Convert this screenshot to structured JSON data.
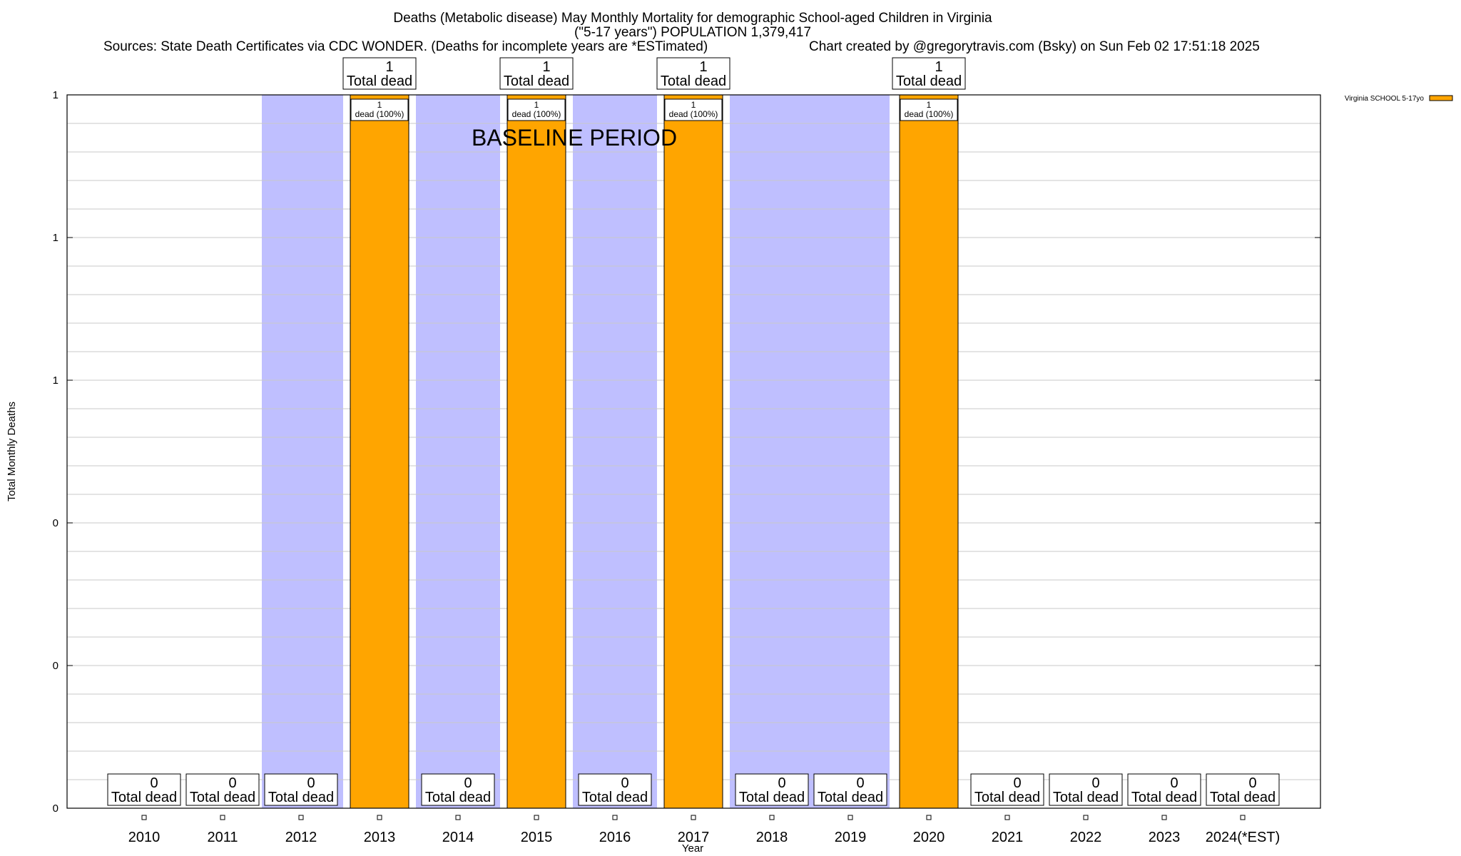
{
  "chart_data": {
    "type": "bar",
    "title_lines": [
      "Deaths (Metabolic disease) May Monthly Mortality for demographic School-aged Children in Virginia",
      "(\"5-17 years\") POPULATION 1,379,417"
    ],
    "sources_text": "Sources: State Death Certificates via CDC WONDER. (Deaths for incomplete years are *ESTimated)",
    "credit_text": "Chart created by @gregorytravis.com (Bsky) on Sun Feb 02 17:51:18 2025",
    "xlabel": "Year",
    "ylabel": "Total Monthly Deaths",
    "ylim": [
      0,
      1
    ],
    "y_tick_labels": [
      "0",
      "0",
      "0",
      "1",
      "1",
      "1"
    ],
    "categories": [
      "2010",
      "2011",
      "2012",
      "2013",
      "2014",
      "2015",
      "2016",
      "2017",
      "2018",
      "2019",
      "2020",
      "2021",
      "2022",
      "2023",
      "2024(*EST)"
    ],
    "series": [
      {
        "name": "Virginia SCHOOL 5-17yo",
        "color": "#FFA500",
        "values": [
          0,
          0,
          0,
          1,
          0,
          1,
          0,
          1,
          0,
          0,
          1,
          0,
          0,
          0,
          0
        ]
      }
    ],
    "total_labels": [
      "0",
      "0",
      "0",
      "1",
      "0",
      "1",
      "0",
      "1",
      "0",
      "0",
      "1",
      "0",
      "0",
      "0",
      "0"
    ],
    "total_suffix": "Total dead",
    "bar_labels": [
      {
        "category": "2013",
        "count": "1",
        "text": "dead (100%)"
      },
      {
        "category": "2015",
        "count": "1",
        "text": "dead (100%)"
      },
      {
        "category": "2017",
        "count": "1",
        "text": "dead (100%)"
      },
      {
        "category": "2020",
        "count": "1",
        "text": "dead (100%)"
      }
    ],
    "baseline": {
      "label": "BASELINE PERIOD",
      "from": "2012",
      "to": "2019",
      "color": "#BFBFFF"
    },
    "grid": true,
    "legend_position": "top-right"
  }
}
